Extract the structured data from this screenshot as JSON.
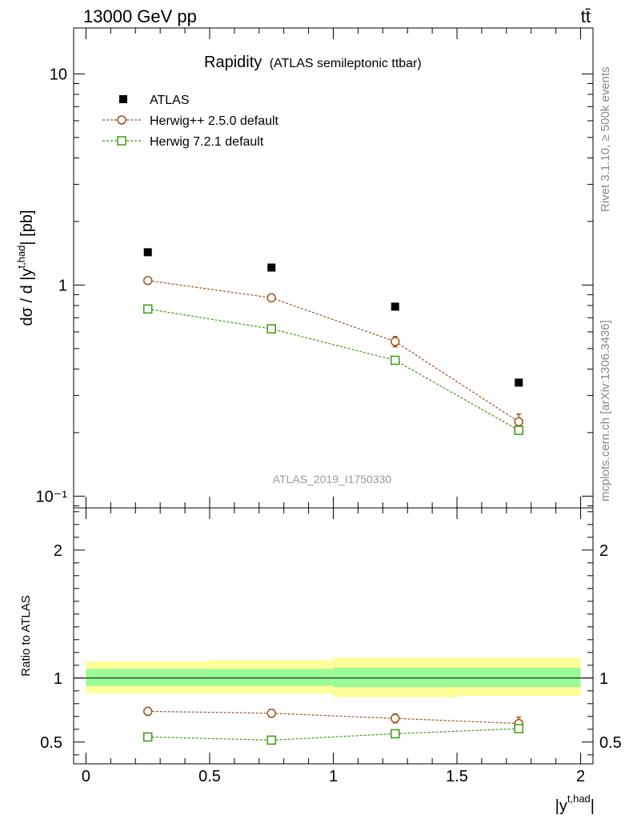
{
  "header": {
    "energy_label": "13000 GeV pp",
    "process_label": "tt̄"
  },
  "side_labels": {
    "rivet": "Rivet 3.1.10, ≥ 500k events",
    "mcplots": "mcplots.cern.ch [arXiv:1306.3436]"
  },
  "plot_title": {
    "main": "Rapidity",
    "sub": "(ATLAS semileptonic ttbar)"
  },
  "watermark": "ATLAS_2019_I1750330",
  "colors": {
    "data": "#000000",
    "herwig_old": "#a0521d",
    "herwig_new": "#3c9a0f",
    "band_inner": "#98fb98",
    "band_outer": "#ffff99"
  },
  "chart_data": [
    {
      "type": "scatter",
      "panel": "main",
      "yscale": "log",
      "ylabel_prefix": "dσ / d |y",
      "ylabel_sup": "t,had",
      "ylabel_suffix": "| [pb]",
      "xlim": [
        -0.05,
        2.05
      ],
      "ylim": [
        0.088,
        16.5
      ],
      "ytick_values": [
        0.1,
        1,
        10
      ],
      "ytick_labels": [
        "10⁻¹",
        "1",
        "10"
      ],
      "x": [
        0.25,
        0.75,
        1.25,
        1.75
      ],
      "series": [
        {
          "name": "ATLAS",
          "marker": "filled-square",
          "line": false,
          "values": [
            1.43,
            1.21,
            0.79,
            0.345
          ],
          "errors": [
            0.0,
            0.0,
            0.0,
            0.0
          ]
        },
        {
          "name": "Herwig++ 2.5.0 default",
          "marker": "open-circle",
          "line": true,
          "values": [
            1.05,
            0.87,
            0.54,
            0.225
          ],
          "errors": [
            0.03,
            0.03,
            0.03,
            0.02
          ]
        },
        {
          "name": "Herwig 7.2.1 default",
          "marker": "open-square",
          "line": true,
          "values": [
            0.77,
            0.62,
            0.44,
            0.205
          ],
          "errors": [
            0.0,
            0.0,
            0.0,
            0.0
          ]
        }
      ]
    },
    {
      "type": "scatter",
      "panel": "ratio",
      "ylabel": "Ratio to ATLAS",
      "xlabel_prefix": "|y",
      "xlabel_sup": "t,had",
      "xlabel_suffix": "|",
      "xlim": [
        -0.05,
        2.05
      ],
      "ylim": [
        0.33,
        2.33
      ],
      "xtick_values": [
        0,
        0.5,
        1,
        1.5,
        2
      ],
      "xtick_labels": [
        "0",
        "0.5",
        "1",
        "1.5",
        "2"
      ],
      "ytick_values": [
        0.5,
        1,
        2
      ],
      "ytick_labels": [
        "0.5",
        "1",
        "2"
      ],
      "x": [
        0.25,
        0.75,
        1.25,
        1.75
      ],
      "bins": [
        [
          0,
          0.5
        ],
        [
          0.5,
          1
        ],
        [
          1,
          1.5
        ],
        [
          1.5,
          2
        ]
      ],
      "band_inner": [
        [
          0.94,
          1.07
        ],
        [
          0.94,
          1.07
        ],
        [
          0.93,
          1.08
        ],
        [
          0.93,
          1.08
        ]
      ],
      "band_outer": [
        [
          0.88,
          1.13
        ],
        [
          0.88,
          1.14
        ],
        [
          0.85,
          1.16
        ],
        [
          0.86,
          1.16
        ]
      ],
      "series": [
        {
          "name": "Herwig++ 2.5.0 default",
          "marker": "open-circle",
          "values": [
            0.74,
            0.725,
            0.685,
            0.645
          ],
          "errors": [
            0.03,
            0.03,
            0.035,
            0.05
          ]
        },
        {
          "name": "Herwig 7.2.1 default",
          "marker": "open-square",
          "values": [
            0.54,
            0.515,
            0.565,
            0.605
          ],
          "errors": [
            0.0,
            0.0,
            0.0,
            0.02
          ]
        }
      ]
    }
  ]
}
